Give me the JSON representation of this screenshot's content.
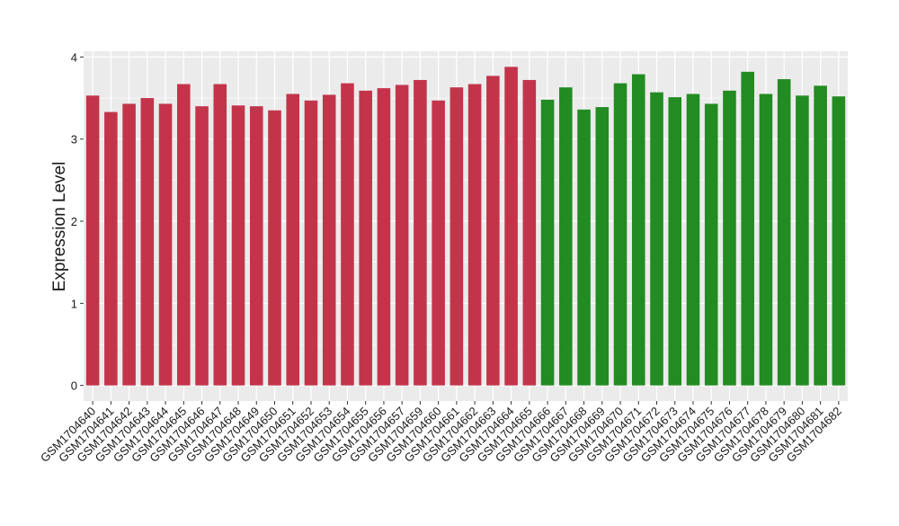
{
  "chart_data": {
    "type": "bar",
    "y_label": "Expression Level",
    "categories": [
      "GSM1704640",
      "GSM1704641",
      "GSM1704642",
      "GSM1704643",
      "GSM1704644",
      "GSM1704645",
      "GSM1704646",
      "GSM1704647",
      "GSM1704648",
      "GSM1704649",
      "GSM1704650",
      "GSM1704651",
      "GSM1704652",
      "GSM1704653",
      "GSM1704654",
      "GSM1704655",
      "GSM1704656",
      "GSM1704657",
      "GSM1704659",
      "GSM1704660",
      "GSM1704661",
      "GSM1704662",
      "GSM1704663",
      "GSM1704664",
      "GSM1704665",
      "GSM1704666",
      "GSM1704667",
      "GSM1704668",
      "GSM1704669",
      "GSM1704670",
      "GSM1704671",
      "GSM1704672",
      "GSM1704673",
      "GSM1704674",
      "GSM1704675",
      "GSM1704676",
      "GSM1704677",
      "GSM1704678",
      "GSM1704679",
      "GSM1704680",
      "GSM1704681",
      "GSM1704682"
    ],
    "series": [
      {
        "color": "#c3344b",
        "values": [
          3.53,
          3.33,
          3.43,
          3.5,
          3.43,
          3.67,
          3.4,
          3.67,
          3.41,
          3.4,
          3.35,
          3.55,
          3.47,
          3.54,
          3.68,
          3.59,
          3.62,
          3.66,
          3.72,
          3.47,
          3.63,
          3.67,
          3.77,
          3.88,
          3.72,
          null,
          null,
          null,
          null,
          null,
          null,
          null,
          null,
          null,
          null,
          null,
          null,
          null,
          null,
          null,
          null,
          null
        ]
      },
      {
        "color": "#228b22",
        "values": [
          null,
          null,
          null,
          null,
          null,
          null,
          null,
          null,
          null,
          null,
          null,
          null,
          null,
          null,
          null,
          null,
          null,
          null,
          null,
          null,
          null,
          null,
          null,
          null,
          null,
          3.48,
          3.63,
          3.36,
          3.39,
          3.68,
          3.79,
          3.57,
          3.51,
          3.55,
          3.43,
          3.59,
          3.82,
          3.55,
          3.73,
          3.53,
          3.65,
          3.52
        ]
      }
    ],
    "ylim": [
      -0.19,
      4.07
    ],
    "yticks": [
      0,
      1,
      2,
      3,
      4
    ],
    "y_minor_ticks": [
      0.5,
      1.5,
      2.5,
      3.5
    ],
    "grid": true,
    "panel_color": "#ebebeb"
  }
}
